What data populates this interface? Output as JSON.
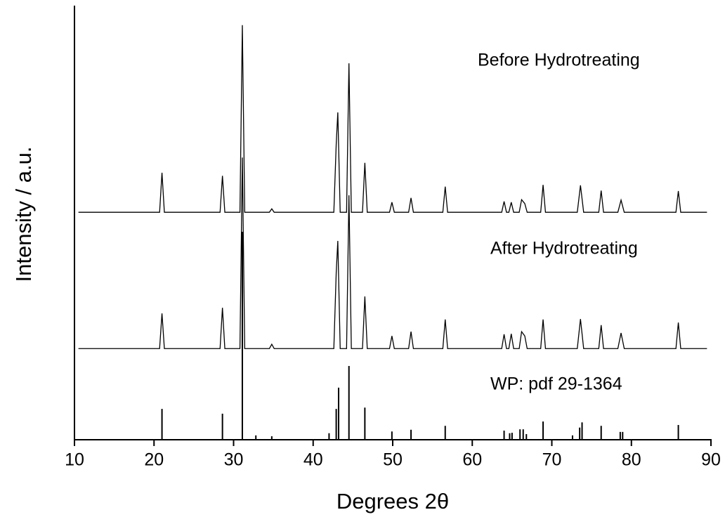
{
  "chart_data": {
    "type": "line",
    "xlabel": "Degrees 2θ",
    "ylabel": "Intensity / a.u.",
    "xlim": [
      10,
      90
    ],
    "xticks": [
      10,
      20,
      30,
      40,
      50,
      60,
      70,
      80,
      90
    ],
    "ylim": [
      0,
      100
    ],
    "series": [
      {
        "name": "Before Hydrotreating",
        "type": "line",
        "color": "#000000",
        "x": [
          10.5,
          20.7,
          21.0,
          21.3,
          28.3,
          28.6,
          28.9,
          30.8,
          31.1,
          31.4,
          34.5,
          34.8,
          35.1,
          42.6,
          42.9,
          43.1,
          43.4,
          44.2,
          44.5,
          44.8,
          46.2,
          46.5,
          46.8,
          49.6,
          49.9,
          50.2,
          52.0,
          52.3,
          52.6,
          56.3,
          56.6,
          56.9,
          63.7,
          64.0,
          64.3,
          64.6,
          64.9,
          65.2,
          65.9,
          66.2,
          66.6,
          66.9,
          68.6,
          68.9,
          69.2,
          73.2,
          73.6,
          74.0,
          75.9,
          76.2,
          76.5,
          78.3,
          78.7,
          79.1,
          85.6,
          85.9,
          86.2,
          89.5
        ],
        "values": [
          52.4,
          52.4,
          61.5,
          52.4,
          52.4,
          60.8,
          52.4,
          52.4,
          95.5,
          52.4,
          52.4,
          53.2,
          52.4,
          52.4,
          68.1,
          75.4,
          52.4,
          52.4,
          86.7,
          52.4,
          52.4,
          63.8,
          52.4,
          52.4,
          54.7,
          52.4,
          52.4,
          55.7,
          52.4,
          52.4,
          58.3,
          52.4,
          52.4,
          54.9,
          52.4,
          52.4,
          54.7,
          52.4,
          52.4,
          55.3,
          54.4,
          52.4,
          52.4,
          58.7,
          52.4,
          52.4,
          58.6,
          52.4,
          52.4,
          57.4,
          52.4,
          52.4,
          55.2,
          52.4,
          52.4,
          57.3,
          52.4,
          52.4
        ]
      },
      {
        "name": "After Hydrotreating",
        "type": "line",
        "color": "#000000",
        "x": [
          10.5,
          20.7,
          21.0,
          21.3,
          28.3,
          28.6,
          28.9,
          30.8,
          31.1,
          31.4,
          34.5,
          34.8,
          35.1,
          42.6,
          42.9,
          43.1,
          43.4,
          44.2,
          44.5,
          44.8,
          46.2,
          46.5,
          46.8,
          49.6,
          49.9,
          50.2,
          52.0,
          52.3,
          52.6,
          56.3,
          56.6,
          56.9,
          63.7,
          64.0,
          64.3,
          64.6,
          64.9,
          65.2,
          65.9,
          66.2,
          66.6,
          66.9,
          68.6,
          68.9,
          69.2,
          73.2,
          73.6,
          74.0,
          75.9,
          76.2,
          76.5,
          78.3,
          78.7,
          79.1,
          85.6,
          85.9,
          86.2,
          89.5
        ],
        "values": [
          21.0,
          21.0,
          29.1,
          21.0,
          21.0,
          30.4,
          21.0,
          21.0,
          65.0,
          21.0,
          21.0,
          22.0,
          21.0,
          21.0,
          38.5,
          45.8,
          21.0,
          21.0,
          56.3,
          21.0,
          21.0,
          33.0,
          21.0,
          21.0,
          23.9,
          21.0,
          21.0,
          24.9,
          21.0,
          21.0,
          27.7,
          21.0,
          21.0,
          24.3,
          21.0,
          21.0,
          24.4,
          21.0,
          21.0,
          24.9,
          23.9,
          21.0,
          21.0,
          27.7,
          21.0,
          21.0,
          27.8,
          21.0,
          21.0,
          26.4,
          21.0,
          21.0,
          24.6,
          21.0,
          21.0,
          27.0,
          21.0,
          21.0
        ]
      },
      {
        "name": "WP: pdf 29-1364",
        "type": "stick",
        "color": "#000000",
        "x": [
          21.0,
          28.6,
          31.1,
          32.8,
          34.8,
          42.0,
          42.9,
          43.2,
          44.5,
          46.5,
          49.9,
          52.3,
          56.6,
          64.0,
          64.7,
          65.0,
          66.0,
          66.4,
          66.8,
          68.9,
          72.6,
          73.5,
          73.8,
          76.2,
          78.6,
          78.9,
          85.9
        ],
        "values": [
          7.1,
          6.0,
          47.9,
          1.0,
          0.8,
          1.5,
          7.1,
          12.0,
          17.0,
          7.4,
          1.9,
          2.3,
          3.2,
          2.1,
          1.5,
          1.6,
          2.4,
          2.4,
          1.3,
          4.2,
          1.0,
          2.8,
          4.0,
          3.2,
          1.8,
          1.8,
          3.4
        ]
      }
    ]
  }
}
